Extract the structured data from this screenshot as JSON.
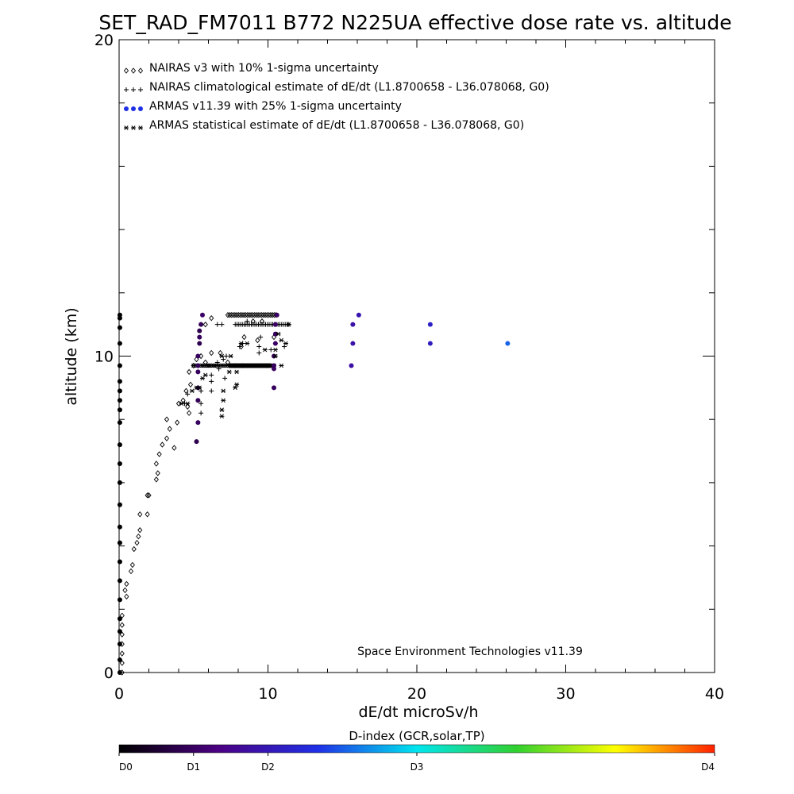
{
  "chart_data": {
    "type": "scatter",
    "title": "SET_RAD_FM7011  B772 N225UA effective dose rate vs. altitude",
    "xlabel": "dE/dt microSv/h",
    "ylabel": "altitude (km)",
    "xlim": [
      0,
      40
    ],
    "ylim": [
      0,
      20
    ],
    "x_ticks": [
      "0",
      "10",
      "20",
      "30",
      "40"
    ],
    "y_ticks": [
      "0",
      "10",
      "20"
    ],
    "legend_position": "top-left",
    "legend": [
      {
        "marker": "diamond",
        "label": "NAIRAS v3 with 10% 1-sigma uncertainty"
      },
      {
        "marker": "plus",
        "label": "NAIRAS climatological estimate of dE/dt (L1.8700658 - L36.078068, G0)"
      },
      {
        "marker": "dot",
        "label": "ARMAS v11.39 with 25% 1-sigma uncertainty"
      },
      {
        "marker": "asterisk",
        "label": "ARMAS statistical estimate of dE/dt (L1.8700658 - L36.078068, G0)"
      }
    ],
    "annotation": "Space Environment Technologies v11.39",
    "colorbar": {
      "title": "D-index (GCR,solar,TP)",
      "ticks": [
        {
          "label": "D0",
          "pos": 0.0
        },
        {
          "label": "D1",
          "pos": 0.125
        },
        {
          "label": "D2",
          "pos": 0.25
        },
        {
          "label": "D3",
          "pos": 0.5
        },
        {
          "label": "D4",
          "pos": 1.0
        }
      ],
      "stops": [
        "#000000",
        "#4b0082",
        "#1f2fe6",
        "#00e5ee",
        "#30d030",
        "#ffff00",
        "#ff2000"
      ]
    },
    "series": [
      {
        "name": "NAIRAS v3 with 10% 1-sigma uncertainty",
        "marker": "diamond",
        "color": "#000000",
        "points": [
          [
            0.2,
            0.0
          ],
          [
            0.2,
            0.3
          ],
          [
            0.2,
            0.6
          ],
          [
            0.2,
            0.9
          ],
          [
            0.2,
            1.2
          ],
          [
            0.2,
            1.5
          ],
          [
            0.2,
            1.8
          ],
          [
            0.5,
            2.4
          ],
          [
            0.4,
            2.6
          ],
          [
            0.5,
            2.8
          ],
          [
            0.8,
            3.2
          ],
          [
            0.9,
            3.4
          ],
          [
            1.0,
            3.9
          ],
          [
            1.2,
            4.1
          ],
          [
            1.3,
            4.3
          ],
          [
            1.4,
            4.5
          ],
          [
            1.4,
            5.0
          ],
          [
            1.9,
            5.0
          ],
          [
            1.9,
            5.6
          ],
          [
            2.0,
            5.6
          ],
          [
            2.5,
            6.1
          ],
          [
            2.6,
            6.3
          ],
          [
            2.5,
            6.6
          ],
          [
            2.7,
            6.9
          ],
          [
            2.9,
            7.2
          ],
          [
            3.2,
            7.4
          ],
          [
            3.7,
            7.1
          ],
          [
            3.4,
            7.7
          ],
          [
            3.9,
            7.9
          ],
          [
            3.2,
            8.0
          ],
          [
            4.0,
            8.5
          ],
          [
            4.3,
            8.6
          ],
          [
            4.6,
            8.4
          ],
          [
            4.7,
            8.2
          ],
          [
            4.5,
            8.9
          ],
          [
            4.8,
            9.1
          ],
          [
            4.7,
            9.5
          ],
          [
            5.0,
            9.7
          ],
          [
            5.2,
            9.9
          ],
          [
            5.5,
            10.0
          ],
          [
            5.8,
            9.8
          ],
          [
            6.2,
            10.1
          ],
          [
            6.8,
            10.1
          ],
          [
            7.3,
            9.8
          ],
          [
            5.8,
            11.0
          ],
          [
            6.2,
            11.2
          ],
          [
            8.2,
            10.3
          ],
          [
            8.4,
            10.6
          ],
          [
            9.3,
            10.5
          ],
          [
            9.0,
            11.1
          ],
          [
            9.6,
            11.1
          ],
          [
            10.4,
            10.6
          ]
        ]
      },
      {
        "name": "NAIRAS climatological estimate of dE/dt (L1.8700658 - L36.078068, G0)",
        "marker": "plus",
        "color": "#000000",
        "points": [
          [
            4.4,
            8.5
          ],
          [
            4.6,
            8.8
          ],
          [
            5.5,
            8.2
          ],
          [
            5.5,
            8.5
          ],
          [
            5.5,
            8.9
          ],
          [
            6.2,
            8.9
          ],
          [
            6.2,
            9.2
          ],
          [
            6.2,
            9.4
          ],
          [
            6.7,
            9.6
          ],
          [
            6.6,
            9.8
          ],
          [
            7.1,
            9.3
          ],
          [
            7.0,
            9.9
          ],
          [
            7.2,
            10.0
          ],
          [
            7.4,
            9.7
          ],
          [
            7.8,
            9.7
          ],
          [
            8.3,
            9.7
          ],
          [
            6.6,
            11.0
          ],
          [
            6.9,
            11.0
          ],
          [
            8.4,
            11.0
          ],
          [
            8.6,
            11.1
          ],
          [
            8.1,
            10.3
          ],
          [
            8.3,
            10.4
          ],
          [
            9.4,
            10.3
          ],
          [
            9.4,
            10.1
          ],
          [
            9.5,
            10.6
          ],
          [
            10.2,
            10.2
          ],
          [
            10.5,
            10.4
          ],
          [
            11.1,
            10.3
          ],
          [
            11.3,
            11.0
          ]
        ]
      },
      {
        "name": "ARMAS v11.39 with 25% 1-sigma uncertainty",
        "marker": "dot",
        "points": [
          [
            0.05,
            0.0
          ],
          [
            0.05,
            0.4
          ],
          [
            0.05,
            0.9
          ],
          [
            0.05,
            1.3
          ],
          [
            0.05,
            1.7
          ],
          [
            0.05,
            2.3
          ],
          [
            0.05,
            2.9
          ],
          [
            0.05,
            3.5
          ],
          [
            0.05,
            4.1
          ],
          [
            0.05,
            4.6
          ],
          [
            0.05,
            5.3
          ],
          [
            0.05,
            6.0
          ],
          [
            0.05,
            6.6
          ],
          [
            0.05,
            7.2
          ],
          [
            0.05,
            7.9
          ],
          [
            0.05,
            8.3
          ],
          [
            0.05,
            8.6
          ],
          [
            0.05,
            8.9
          ],
          [
            0.05,
            9.2
          ],
          [
            0.05,
            9.7
          ],
          [
            0.05,
            10.4
          ],
          [
            0.05,
            10.9
          ],
          [
            0.05,
            11.2
          ],
          [
            0.05,
            11.3
          ],
          [
            5.2,
            7.3
          ],
          [
            5.3,
            7.9
          ],
          [
            5.3,
            8.6
          ],
          [
            5.3,
            9.0
          ],
          [
            5.3,
            9.5
          ],
          [
            5.3,
            9.7
          ],
          [
            5.3,
            10.0
          ],
          [
            5.4,
            10.4
          ],
          [
            5.4,
            10.6
          ],
          [
            5.4,
            10.8
          ],
          [
            5.5,
            11.0
          ],
          [
            5.6,
            11.3
          ],
          [
            10.4,
            9.0
          ],
          [
            10.4,
            9.6
          ],
          [
            10.4,
            9.7
          ],
          [
            10.4,
            10.0
          ],
          [
            10.5,
            10.4
          ],
          [
            10.5,
            10.7
          ],
          [
            10.5,
            11.0
          ],
          [
            10.6,
            11.3
          ],
          [
            15.6,
            9.7
          ],
          [
            15.7,
            10.4
          ],
          [
            15.7,
            11.0
          ],
          [
            16.1,
            11.3
          ],
          [
            20.9,
            10.4
          ],
          [
            20.9,
            11.0
          ],
          [
            26.1,
            10.4
          ]
        ],
        "d_index": [
          0.0,
          0.0,
          0.0,
          0.0,
          0.0,
          0.0,
          0.0,
          0.0,
          0.0,
          0.0,
          0.0,
          0.0,
          0.0,
          0.0,
          0.0,
          0.0,
          0.0,
          0.0,
          0.0,
          0.0,
          0.0,
          0.0,
          0.0,
          0.0,
          0.1,
          0.12,
          0.11,
          0.1,
          0.12,
          0.11,
          0.12,
          0.1,
          0.12,
          0.1,
          0.11,
          0.13,
          0.12,
          0.13,
          0.12,
          0.12,
          0.13,
          0.12,
          0.13,
          0.13,
          0.22,
          0.23,
          0.23,
          0.24,
          0.27,
          0.28,
          0.38
        ]
      },
      {
        "name": "ARMAS statistical estimate of dE/dt (L1.8700658 - L36.078068, G0)",
        "marker": "asterisk",
        "color": "#000000",
        "points": [
          [
            4.2,
            8.5
          ],
          [
            4.6,
            8.5
          ],
          [
            4.9,
            8.9
          ],
          [
            5.2,
            9.0
          ],
          [
            5.4,
            9.0
          ],
          [
            5.6,
            9.3
          ],
          [
            5.8,
            9.4
          ],
          [
            6.0,
            9.7
          ],
          [
            5.7,
            9.7
          ],
          [
            6.1,
            9.7
          ],
          [
            6.4,
            9.7
          ],
          [
            6.8,
            9.7
          ],
          [
            6.9,
            10.0
          ],
          [
            7.5,
            10.0
          ],
          [
            6.9,
            8.1
          ],
          [
            6.9,
            8.3
          ],
          [
            7.0,
            8.6
          ],
          [
            7.0,
            8.9
          ],
          [
            7.8,
            9.0
          ],
          [
            7.9,
            9.5
          ],
          [
            7.9,
            9.1
          ],
          [
            7.4,
            9.5
          ],
          [
            8.2,
            10.4
          ],
          [
            8.6,
            10.4
          ],
          [
            9.8,
            10.2
          ],
          [
            10.5,
            10.2
          ],
          [
            10.9,
            10.5
          ],
          [
            11.2,
            10.4
          ],
          [
            10.7,
            10.7
          ],
          [
            11.4,
            11.0
          ],
          [
            10.5,
            10.0
          ],
          [
            10.9,
            9.7
          ]
        ]
      }
    ],
    "dense_rows": [
      {
        "marker": "diamond",
        "y": 11.3,
        "x_from": 7.3,
        "x_to": 10.6
      },
      {
        "marker": "plus",
        "y": 11.0,
        "x_from": 7.8,
        "x_to": 11.4
      },
      {
        "marker": "asterisk",
        "y": 9.7,
        "x_from": 5.0,
        "x_to": 10.4
      },
      {
        "marker": "dot",
        "y": 9.7,
        "x_from": 7.5,
        "x_to": 10.2
      }
    ]
  }
}
